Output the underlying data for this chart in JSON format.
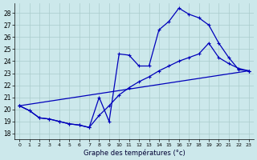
{
  "title": "Graphe des températures (°c)",
  "bg_color": "#cce8eb",
  "grid_color": "#aacccc",
  "line_color": "#0000bb",
  "xlim": [
    -0.5,
    23.5
  ],
  "ylim": [
    17.5,
    28.8
  ],
  "yticks": [
    18,
    19,
    20,
    21,
    22,
    23,
    24,
    25,
    26,
    27,
    28
  ],
  "xticks": [
    0,
    1,
    2,
    3,
    4,
    5,
    6,
    7,
    8,
    9,
    10,
    11,
    12,
    13,
    14,
    15,
    16,
    17,
    18,
    19,
    20,
    21,
    22,
    23
  ],
  "line1_x": [
    0,
    1,
    2,
    3,
    4,
    5,
    6,
    7,
    8,
    9,
    10,
    11,
    12,
    13,
    14,
    15,
    16,
    17,
    18,
    19,
    20,
    21,
    22,
    23
  ],
  "line1_y": [
    20.3,
    19.9,
    19.3,
    19.2,
    19.0,
    18.8,
    18.7,
    18.5,
    21.0,
    19.0,
    24.6,
    24.5,
    23.6,
    23.6,
    26.6,
    27.3,
    28.4,
    27.9,
    27.6,
    27.0,
    25.5,
    24.3,
    23.3,
    23.2
  ],
  "line2_x": [
    0,
    1,
    2,
    3,
    4,
    5,
    6,
    7,
    8,
    9,
    10,
    11,
    12,
    13,
    14,
    15,
    16,
    17,
    18,
    19,
    20,
    21,
    22,
    23
  ],
  "line2_y": [
    20.3,
    19.9,
    19.3,
    19.2,
    19.0,
    18.8,
    18.7,
    18.5,
    19.5,
    20.3,
    21.2,
    21.8,
    22.3,
    22.7,
    23.2,
    23.6,
    24.0,
    24.3,
    24.6,
    25.5,
    24.3,
    23.8,
    23.4,
    23.2
  ],
  "line3_x": [
    0,
    23
  ],
  "line3_y": [
    20.3,
    23.2
  ]
}
